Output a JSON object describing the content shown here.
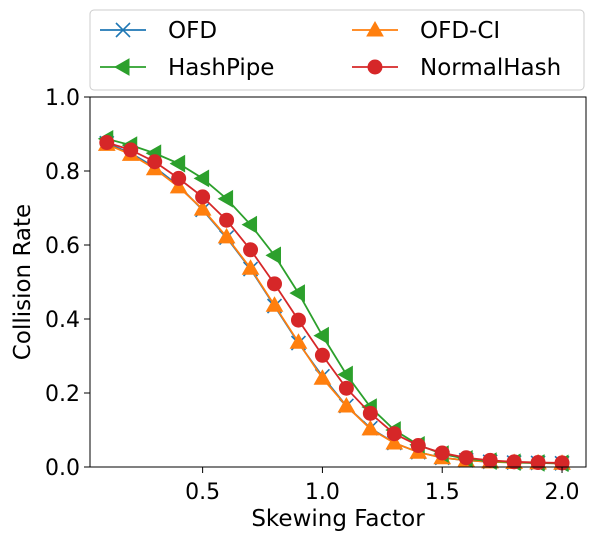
{
  "chart_data": {
    "type": "line",
    "xlabel": "Skewing Factor",
    "ylabel": "Collision Rate",
    "xlim": [
      0.03,
      2.1
    ],
    "ylim": [
      0.0,
      1.0
    ],
    "x_ticks": [
      0.5,
      1.0,
      1.5,
      2.0
    ],
    "x_tick_labels": [
      "0.5",
      "1.0",
      "1.5",
      "2.0"
    ],
    "y_ticks": [
      0.0,
      0.2,
      0.4,
      0.6,
      0.8,
      1.0
    ],
    "y_tick_labels": [
      "0.0",
      "0.2",
      "0.4",
      "0.6",
      "0.8",
      "1.0"
    ],
    "grid": false,
    "legend_placement": "top, outside, two columns",
    "x": [
      0.1,
      0.2,
      0.3,
      0.4,
      0.5,
      0.6,
      0.7,
      0.8,
      0.9,
      1.0,
      1.1,
      1.2,
      1.3,
      1.4,
      1.5,
      1.6,
      1.7,
      1.8,
      1.9,
      2.0
    ],
    "series": [
      {
        "name": "OFD",
        "color": "#1f77b4",
        "marker": "x",
        "values": [
          0.875,
          0.848,
          0.81,
          0.76,
          0.695,
          0.62,
          0.535,
          0.435,
          0.335,
          0.245,
          0.165,
          0.105,
          0.065,
          0.04,
          0.025,
          0.018,
          0.014,
          0.012,
          0.011,
          0.01
        ]
      },
      {
        "name": "OFD-CI",
        "color": "#ff7f0e",
        "marker": "triangle-up",
        "values": [
          0.872,
          0.845,
          0.806,
          0.757,
          0.697,
          0.622,
          0.537,
          0.437,
          0.337,
          0.24,
          0.165,
          0.103,
          0.065,
          0.04,
          0.025,
          0.018,
          0.014,
          0.012,
          0.011,
          0.01
        ]
      },
      {
        "name": "HashPipe",
        "color": "#2ca02c",
        "marker": "triangle-left",
        "values": [
          0.887,
          0.87,
          0.848,
          0.82,
          0.78,
          0.725,
          0.655,
          0.572,
          0.47,
          0.355,
          0.25,
          0.162,
          0.1,
          0.06,
          0.035,
          0.022,
          0.016,
          0.013,
          0.011,
          0.01
        ]
      },
      {
        "name": "NormalHash",
        "color": "#d62728",
        "marker": "circle",
        "values": [
          0.877,
          0.857,
          0.825,
          0.78,
          0.73,
          0.667,
          0.587,
          0.495,
          0.397,
          0.302,
          0.213,
          0.145,
          0.09,
          0.058,
          0.038,
          0.025,
          0.018,
          0.014,
          0.012,
          0.011
        ]
      }
    ]
  }
}
